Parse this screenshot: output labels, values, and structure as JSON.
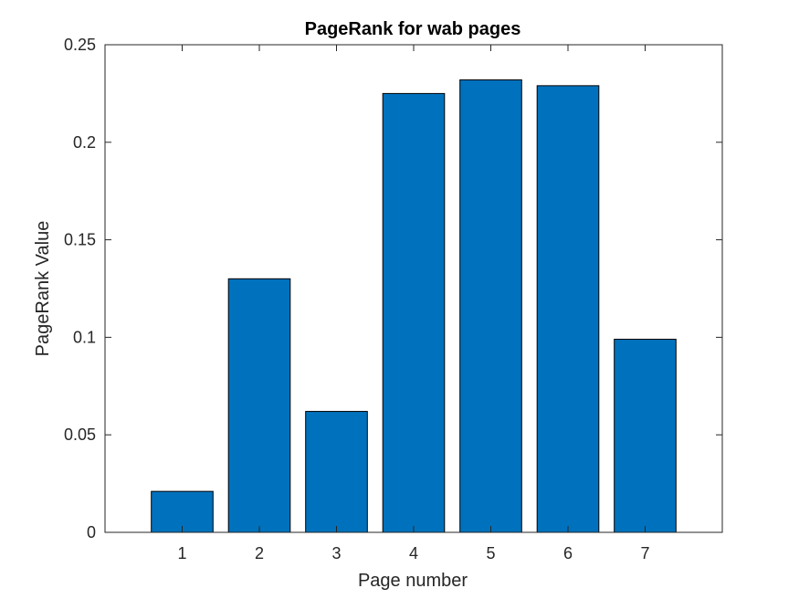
{
  "chart_data": {
    "type": "bar",
    "title": "PageRank for wab pages",
    "xlabel": "Page number",
    "ylabel": "PageRank Value",
    "categories": [
      "1",
      "2",
      "3",
      "4",
      "5",
      "6",
      "7"
    ],
    "values": [
      0.021,
      0.13,
      0.062,
      0.225,
      0.232,
      0.229,
      0.099
    ],
    "xlim": [
      0,
      8
    ],
    "ylim": [
      0,
      0.25
    ],
    "yticks": [
      0,
      0.05,
      0.1,
      0.15,
      0.2,
      0.25
    ],
    "ytick_labels": [
      "0",
      "0.05",
      "0.1",
      "0.15",
      "0.2",
      "0.25"
    ],
    "grid": false,
    "legend": "none",
    "colors": {
      "bar_fill": "#0072BD",
      "bar_edge": "#000000",
      "axis": "#262626"
    }
  }
}
